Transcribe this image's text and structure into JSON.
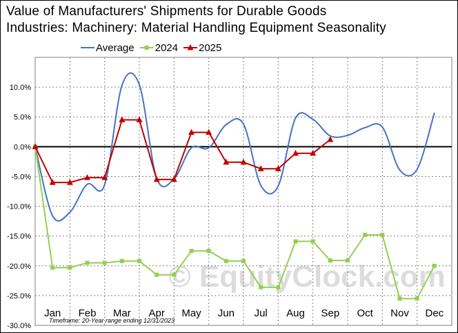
{
  "chart_data": {
    "type": "line",
    "title": "Value of Manufacturers' Shipments for Durable Goods\nIndustries: Machinery: Material Handling Equipment Seasonality",
    "categories": [
      "Jan",
      "Feb",
      "Mar",
      "Apr",
      "May",
      "Jun",
      "Jul",
      "Aug",
      "Sep",
      "Oct",
      "Nov",
      "Dec"
    ],
    "ylim": [
      -30,
      15
    ],
    "yticks": [
      10,
      5,
      0,
      -5,
      -10,
      -15,
      -20,
      -25,
      -30
    ],
    "ytick_labels": [
      "10.0%",
      "5.0%",
      "0.0%",
      "-5.0%",
      "-10.0%",
      "-15.0%",
      "-20.0%",
      "-25.0%",
      "-30.0%"
    ],
    "legend_position": "top",
    "grid": true,
    "series": [
      {
        "name": "Average",
        "color": "#4472c4",
        "marker": "none",
        "smooth": true,
        "x": [
          0,
          0.5,
          1,
          1.5,
          2,
          2.5,
          3,
          3.5,
          4,
          4.5,
          5,
          5.5,
          6,
          6.5,
          7,
          7.5,
          8,
          8.5,
          9,
          9.5,
          10,
          10.5,
          11,
          11.5
        ],
        "values": [
          0,
          -11.6,
          -11.0,
          -6.3,
          -6.4,
          10.3,
          10.4,
          -5.3,
          -5.4,
          -0.2,
          -0.2,
          3.7,
          3.8,
          -6.5,
          -6.6,
          4.8,
          4.6,
          1.8,
          1.9,
          3.2,
          3.3,
          -3.9,
          -3.8,
          5.7
        ]
      },
      {
        "name": "2024",
        "color": "#92d050",
        "marker": "square",
        "smooth": false,
        "x": [
          0,
          0.5,
          1,
          1.5,
          2,
          2.5,
          3,
          3.5,
          4,
          4.5,
          5,
          5.5,
          6,
          6.5,
          7,
          7.5,
          8,
          8.5,
          9,
          9.5,
          10,
          10.5,
          11,
          11.5
        ],
        "values": [
          0,
          -20.3,
          -20.3,
          -19.5,
          -19.5,
          -19.2,
          -19.2,
          -21.5,
          -21.5,
          -17.5,
          -17.5,
          -19.2,
          -19.2,
          -23.6,
          -23.6,
          -15.9,
          -15.9,
          -19.1,
          -19.1,
          -14.8,
          -14.8,
          -25.5,
          -25.5,
          -20.0
        ]
      },
      {
        "name": "2025",
        "color": "#c00000",
        "marker": "triangle",
        "smooth": false,
        "x": [
          0,
          0.5,
          1,
          1.5,
          2,
          2.5,
          3,
          3.5,
          4,
          4.5,
          5,
          5.5,
          6,
          6.5,
          7,
          7.5,
          8,
          8.5
        ],
        "values": [
          0,
          -6.0,
          -6.0,
          -5.2,
          -5.2,
          4.5,
          4.5,
          -5.5,
          -5.5,
          2.4,
          2.4,
          -2.6,
          -2.6,
          -3.7,
          -3.7,
          -1.1,
          -1.1,
          1.2
        ]
      }
    ],
    "footnote": "Timeframe: 20-Year range ending 12/31/2023",
    "watermark": "© EquityClock.com"
  }
}
